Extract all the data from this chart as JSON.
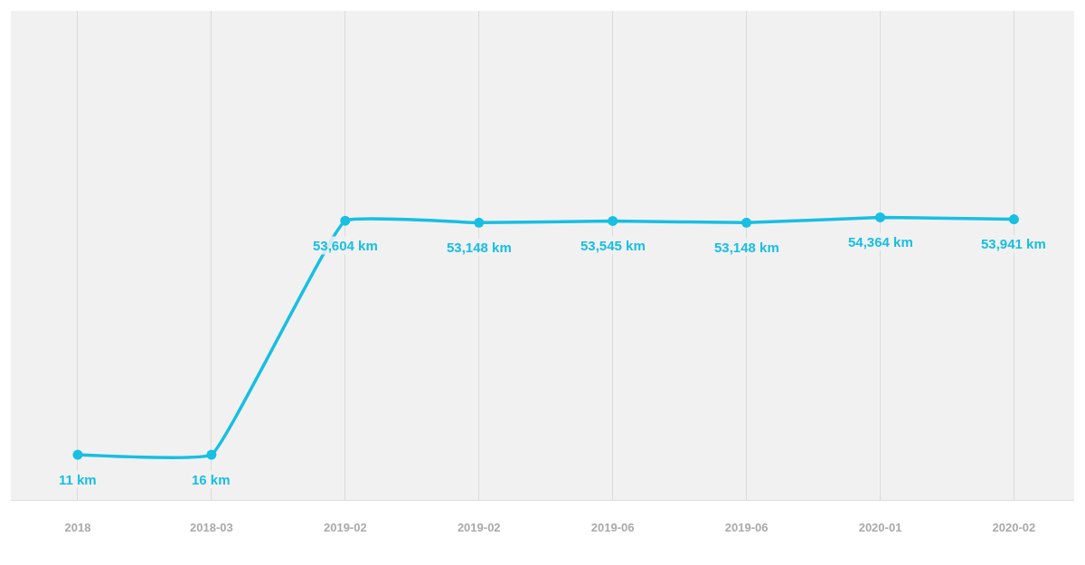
{
  "chart_data": {
    "type": "line",
    "categories": [
      "2018",
      "2018-03",
      "2019-02",
      "2019-02",
      "2019-06",
      "2019-06",
      "2020-01",
      "2020-02"
    ],
    "series": [
      {
        "color": "#17bfe3",
        "values": [
          11,
          16,
          53604,
          53148,
          53545,
          53148,
          54364,
          53941
        ],
        "value_labels": [
          "11 km",
          "16 km",
          "53,604 km",
          "53,148 km",
          "53,545 km",
          "53,148 km",
          "54,364 km",
          "53,941 km"
        ]
      }
    ],
    "marker": "circle",
    "line_style": "solid",
    "grid": "x"
  }
}
